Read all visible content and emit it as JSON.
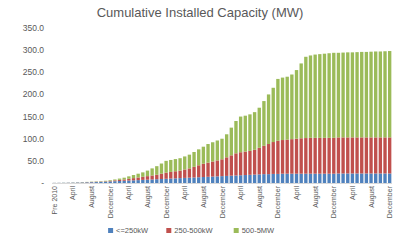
{
  "chart_data": {
    "type": "bar",
    "title": "Cumulative Installed Capacity (MW)",
    "stacked": true,
    "grid": false,
    "legend": "bottom",
    "categories": [
      "Pre 2010",
      null,
      null,
      null,
      "April",
      null,
      null,
      null,
      "August",
      null,
      null,
      null,
      "December",
      null,
      null,
      null,
      "April",
      null,
      null,
      null,
      "August",
      null,
      null,
      null,
      "December",
      null,
      null,
      null,
      "April",
      null,
      null,
      null,
      "August",
      null,
      null,
      null,
      "December",
      null,
      null,
      null,
      "April",
      null,
      null,
      null,
      "August",
      null,
      null,
      null,
      "December",
      null,
      null,
      null,
      "April",
      null,
      null,
      null,
      "August",
      null,
      null,
      null,
      "December",
      null,
      null,
      null,
      "April",
      null,
      null,
      null,
      "August",
      null,
      null,
      null,
      "December"
    ],
    "ylim": [
      0,
      350
    ],
    "yticks": [
      {
        "value": 0,
        "label": "-"
      },
      {
        "value": 50,
        "label": "50.0"
      },
      {
        "value": 100,
        "label": "100.0"
      },
      {
        "value": 150,
        "label": "150.0"
      },
      {
        "value": 200,
        "label": "200.0"
      },
      {
        "value": 250,
        "label": "250.0"
      },
      {
        "value": 300,
        "label": "300.0"
      },
      {
        "value": 350,
        "label": "350.0"
      }
    ],
    "series": [
      {
        "name": "<=250kW",
        "color": "#4f81bd",
        "values": [
          0.3,
          0.4,
          0.5,
          0.6,
          0.8,
          1.0,
          1.2,
          1.5,
          1.8,
          2.1,
          2.4,
          2.8,
          3.5,
          4,
          4.5,
          5,
          5.5,
          6,
          6.5,
          7,
          7.5,
          8,
          8.5,
          9,
          9.5,
          10,
          10.5,
          11,
          11.5,
          12,
          12.5,
          13,
          13.5,
          14,
          14.5,
          15,
          15.5,
          16,
          16.5,
          17,
          17.5,
          18,
          18.5,
          19,
          19.5,
          20,
          20,
          20.5,
          20.5,
          21,
          21,
          21,
          21,
          21,
          21,
          21,
          21,
          21,
          21,
          21,
          21,
          21.5,
          21.5,
          21.5,
          21.5,
          21.5,
          21.5,
          21.5,
          21.5,
          21.5,
          21.5,
          21.5,
          21.5
        ]
      },
      {
        "name": "250-500kW",
        "color": "#c0504d",
        "values": [
          0.1,
          0.1,
          0.1,
          0.2,
          0.2,
          0.3,
          0.4,
          0.5,
          0.6,
          0.7,
          0.8,
          1.0,
          1.5,
          2,
          2.5,
          3,
          4,
          5,
          6,
          7,
          8,
          9,
          10,
          12,
          14,
          15,
          16,
          17,
          19,
          21,
          24,
          27,
          30,
          32,
          34,
          36,
          38,
          42,
          46,
          50,
          52,
          53,
          54,
          56,
          60,
          64,
          68,
          72,
          75,
          76,
          77,
          78,
          79,
          80,
          80.5,
          81,
          81,
          81,
          81,
          81,
          81,
          81.5,
          81.5,
          81.5,
          81.5,
          81.5,
          81.5,
          81.5,
          81.5,
          81.5,
          81.5,
          81.5,
          81.5
        ]
      },
      {
        "name": "500-5MW",
        "color": "#9bbb59",
        "values": [
          0.1,
          0.1,
          0.2,
          0.2,
          0.3,
          0.3,
          0.4,
          0.5,
          0.6,
          0.7,
          0.8,
          1.2,
          1.5,
          2,
          3,
          4,
          5.5,
          7,
          8.5,
          10,
          12.5,
          16,
          19.5,
          23,
          26.5,
          27,
          27.5,
          28,
          29.5,
          31,
          33.5,
          36,
          38.5,
          42,
          43.5,
          45,
          46.5,
          52,
          62.5,
          73,
          80.5,
          81,
          82.5,
          85,
          90.5,
          101,
          112,
          122.5,
          139.5,
          141,
          142,
          146,
          155,
          169,
          183.5,
          186,
          188,
          189,
          190,
          191,
          192,
          191,
          191.5,
          192,
          192,
          192.5,
          193,
          193,
          193.5,
          194,
          194,
          194.5,
          195
        ]
      }
    ]
  }
}
